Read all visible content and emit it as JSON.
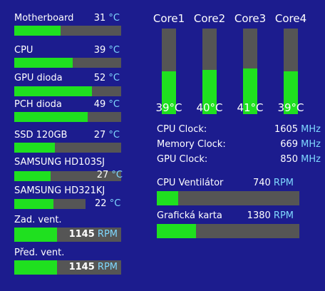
{
  "sensors": [
    {
      "label": "Motherboard",
      "value": 31,
      "unit": "°C"
    },
    {
      "label": "CPU",
      "value": 39,
      "unit": "°C"
    },
    {
      "label": "GPU dioda",
      "value": 52,
      "unit": "°C"
    },
    {
      "label": "PCH dioda",
      "value": 49,
      "unit": "°C"
    },
    {
      "label": "SSD 120GB",
      "value": 27,
      "unit": "°C"
    },
    {
      "label": "SAMSUNG HD103SJ",
      "value": 27,
      "unit": "°C"
    },
    {
      "label": "SAMSUNG HD321KJ",
      "value": 22,
      "unit": "°C"
    }
  ],
  "fans_left": [
    {
      "label": "Zad. vent.",
      "value": 1145,
      "unit": "RPM"
    },
    {
      "label": "Před. vent.",
      "value": 1145,
      "unit": "RPM"
    }
  ],
  "cores": [
    {
      "label": "Core1",
      "value": 39,
      "unit": "°C"
    },
    {
      "label": "Core2",
      "value": 40,
      "unit": "°C"
    },
    {
      "label": "Core3",
      "value": 41,
      "unit": "°C"
    },
    {
      "label": "Core4",
      "value": 39,
      "unit": "°C"
    }
  ],
  "clocks": [
    {
      "label": "CPU Clock:",
      "value": 1605,
      "unit": "MHz"
    },
    {
      "label": "Memory Clock:",
      "value": 669,
      "unit": "MHz"
    },
    {
      "label": "GPU Clock:",
      "value": 850,
      "unit": "MHz"
    }
  ],
  "fans_right": [
    {
      "label": "CPU Ventilátor",
      "value": 740,
      "unit": "RPM"
    },
    {
      "label": "Grafická karta",
      "value": 1380,
      "unit": "RPM"
    }
  ]
}
